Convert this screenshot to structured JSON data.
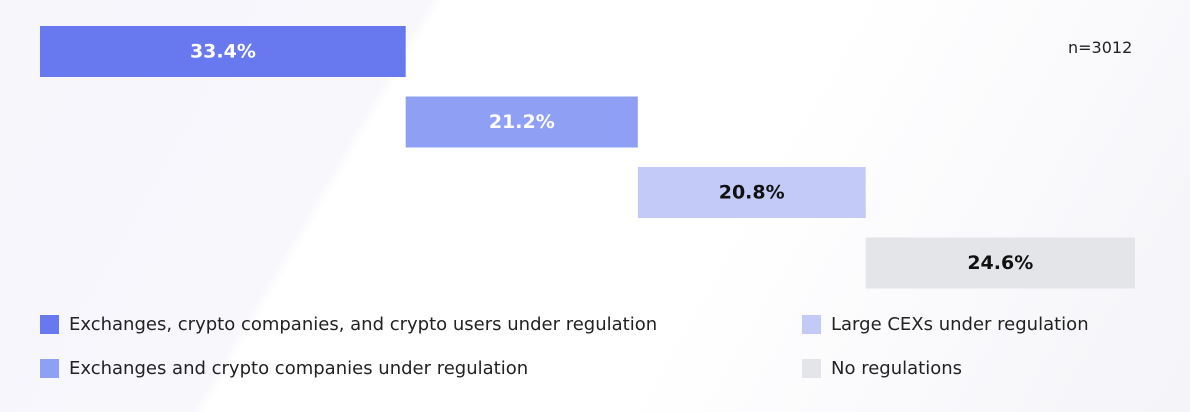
{
  "chart_data": {
    "type": "bar",
    "orientation": "horizontal-stacked-waterfall",
    "sample_size_label": "n=3012",
    "categories": [
      "Exchanges, crypto companies, and crypto users under regulation",
      "Exchanges and crypto companies under regulation",
      "Large CEXs under regulation",
      "No regulations"
    ],
    "values": [
      33.4,
      21.2,
      20.8,
      24.6
    ],
    "value_labels": [
      "33.4%",
      "21.2%",
      "20.8%",
      "24.6%"
    ],
    "unit": "%",
    "colors": [
      "#6879ef",
      "#8fa0f4",
      "#c3caf7",
      "#e3e5e9"
    ],
    "label_colors": [
      "#ffffff",
      "#ffffff",
      "#111111",
      "#111111"
    ],
    "legend": {
      "placement": "bottom",
      "entries": [
        "Exchanges, crypto companies, and crypto users under regulation",
        "Exchanges and crypto companies under regulation",
        "Large CEXs under regulation",
        "No regulations"
      ]
    },
    "grid": false
  }
}
